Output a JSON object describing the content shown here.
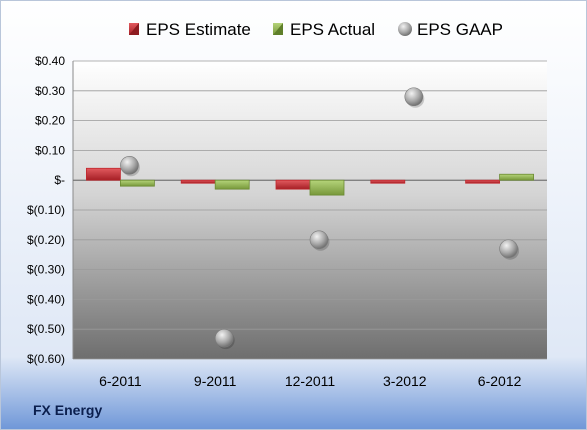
{
  "company": "FX Energy",
  "colors": {
    "estimate": "#c0272d",
    "actual": "#8cb04a",
    "gaap": "#a6a6a6"
  },
  "chart_data": {
    "type": "bar",
    "categories": [
      "6-2011",
      "9-2011",
      "12-2011",
      "3-2012",
      "6-2012"
    ],
    "series": [
      {
        "name": "EPS Estimate",
        "kind": "bar",
        "values": [
          0.04,
          -0.01,
          -0.03,
          -0.01,
          0.0
        ]
      },
      {
        "name": "EPS Actual",
        "kind": "bar",
        "values": [
          -0.02,
          -0.03,
          -0.05,
          null,
          0.02
        ]
      },
      {
        "name": "EPS GAAP",
        "kind": "scatter",
        "values": [
          0.05,
          -0.53,
          -0.2,
          0.28,
          -0.23
        ]
      }
    ],
    "ylim": [
      -0.6,
      0.4
    ],
    "yticks": [
      0.4,
      0.3,
      0.2,
      0.1,
      0.0,
      -0.1,
      -0.2,
      -0.3,
      -0.4,
      -0.5,
      -0.6
    ],
    "ytick_labels": [
      "$0.40",
      "$0.30",
      "$0.20",
      "$0.10",
      "$-",
      "$(0.10)",
      "$(0.20)",
      "$(0.30)",
      "$(0.40)",
      "$(0.50)",
      "$(0.60)"
    ],
    "grid": true,
    "legend": "top"
  }
}
